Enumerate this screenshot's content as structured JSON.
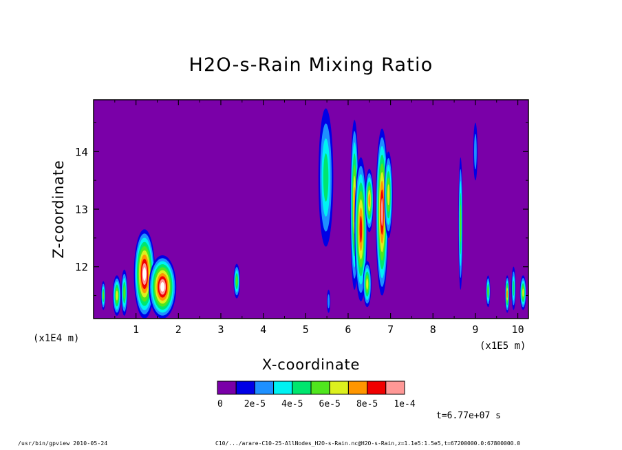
{
  "chart_data": {
    "type": "heatmap",
    "title": "H2O-s-Rain Mixing Ratio",
    "xlabel": "X-coordinate",
    "ylabel": "Z-coordinate",
    "x_unit_left": "(x1E4 m)",
    "x_unit_right": "(x1E5 m)",
    "xlim": [
      0,
      10.25
    ],
    "ylim": [
      11.1,
      14.9
    ],
    "x_ticks": [
      {
        "value": 1,
        "label": "1"
      },
      {
        "value": 2,
        "label": "2"
      },
      {
        "value": 3,
        "label": "3"
      },
      {
        "value": 4,
        "label": "4"
      },
      {
        "value": 5,
        "label": "5"
      },
      {
        "value": 6,
        "label": "6"
      },
      {
        "value": 7,
        "label": "7"
      },
      {
        "value": 8,
        "label": "8"
      },
      {
        "value": 9,
        "label": "9"
      },
      {
        "value": 10,
        "label": "10"
      }
    ],
    "y_ticks": [
      {
        "value": 12,
        "label": "12"
      },
      {
        "value": 13,
        "label": "13"
      },
      {
        "value": 14,
        "label": "14"
      }
    ],
    "background_color": "#7a00a8",
    "colorbar": {
      "colors": [
        "#7a00a8",
        "#0000e6",
        "#1e90ff",
        "#00f2f2",
        "#00e66e",
        "#50e61e",
        "#dcf01e",
        "#ff9600",
        "#f00000",
        "#ff9896"
      ],
      "labels": [
        "0",
        "2e-5",
        "4e-5",
        "6e-5",
        "8e-5",
        "1e-4"
      ],
      "over_color": "#ffffff"
    },
    "features": [
      {
        "x": [
          0.18,
          0.28
        ],
        "z": [
          11.25,
          11.75
        ],
        "level": 5
      },
      {
        "x": [
          0.45,
          0.65
        ],
        "z": [
          11.15,
          11.85
        ],
        "level": 6
      },
      {
        "x": [
          0.65,
          0.8
        ],
        "z": [
          11.15,
          11.95
        ],
        "level": 5
      },
      {
        "x": [
          0.95,
          1.45
        ],
        "z": [
          11.1,
          12.65
        ],
        "level": 10
      },
      {
        "x": [
          1.3,
          1.95
        ],
        "z": [
          11.1,
          12.2
        ],
        "level": 10
      },
      {
        "x": [
          3.3,
          3.45
        ],
        "z": [
          11.45,
          12.05
        ],
        "level": 5
      },
      {
        "x": [
          5.3,
          5.65
        ],
        "z": [
          12.35,
          14.75
        ],
        "level": 4
      },
      {
        "x": [
          5.5,
          5.58
        ],
        "z": [
          11.2,
          11.6
        ],
        "level": 2
      },
      {
        "x": [
          6.05,
          6.25
        ],
        "z": [
          11.6,
          14.55
        ],
        "level": 7
      },
      {
        "x": [
          6.15,
          6.45
        ],
        "z": [
          11.4,
          13.9
        ],
        "level": 8
      },
      {
        "x": [
          6.35,
          6.55
        ],
        "z": [
          11.3,
          12.1
        ],
        "level": 6
      },
      {
        "x": [
          6.4,
          6.6
        ],
        "z": [
          12.6,
          13.7
        ],
        "level": 7
      },
      {
        "x": [
          6.65,
          6.95
        ],
        "z": [
          11.5,
          14.4
        ],
        "level": 9
      },
      {
        "x": [
          6.85,
          7.05
        ],
        "z": [
          12.5,
          14.0
        ],
        "level": 6
      },
      {
        "x": [
          8.6,
          8.7
        ],
        "z": [
          11.6,
          13.9
        ],
        "level": 5
      },
      {
        "x": [
          8.95,
          9.05
        ],
        "z": [
          13.5,
          14.5
        ],
        "level": 2
      },
      {
        "x": [
          9.25,
          9.35
        ],
        "z": [
          11.3,
          11.85
        ],
        "level": 5
      },
      {
        "x": [
          9.7,
          9.8
        ],
        "z": [
          11.2,
          11.85
        ],
        "level": 7
      },
      {
        "x": [
          9.85,
          9.95
        ],
        "z": [
          11.25,
          12.0
        ],
        "level": 4
      },
      {
        "x": [
          10.05,
          10.2
        ],
        "z": [
          11.25,
          11.85
        ],
        "level": 6
      }
    ],
    "time_label": "t=6.77e+07 s"
  },
  "footer": {
    "left": "/usr/bin/gpview  2010-05-24",
    "right": "C10/.../arare-C10-25-AllNodes_H2O-s-Rain.nc@H2O-s-Rain,z=1.1e5:1.5e5,t=67200000.0:67800000.0"
  }
}
